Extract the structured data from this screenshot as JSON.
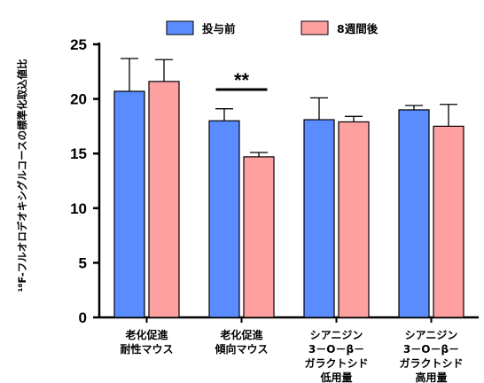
{
  "chart_data": {
    "type": "bar",
    "ylabel": "¹⁸F-フルオロデオキシグルコースの標準化取込値比",
    "ylim": [
      0,
      25
    ],
    "yticks": [
      "0",
      "5",
      "10",
      "15",
      "20",
      "25"
    ],
    "categories": [
      [
        "老化促進",
        "耐性マウス"
      ],
      [
        "老化促進",
        "傾向マウス"
      ],
      [
        "シアニジン",
        "3－O－β－",
        "ガラクトシド",
        "低用量"
      ],
      [
        "シアニジン",
        "3－O－β－",
        "ガラクトシド",
        "高用量"
      ]
    ],
    "series": [
      {
        "name": "投与前",
        "color": "#5b8cff",
        "values": [
          20.7,
          18.0,
          18.1,
          19.0
        ],
        "errors": [
          3.0,
          1.1,
          2.0,
          0.4
        ]
      },
      {
        "name": "8週間後",
        "color": "#ffa0a0",
        "values": [
          21.6,
          14.7,
          17.9,
          17.5
        ],
        "errors": [
          2.0,
          0.4,
          0.5,
          2.0
        ]
      }
    ],
    "annotations": [
      {
        "text": "**",
        "category_index": 1
      }
    ],
    "legend": "top",
    "grid": false
  }
}
